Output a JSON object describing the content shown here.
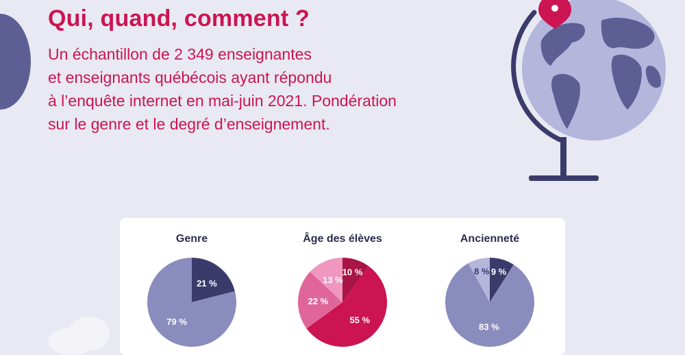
{
  "header": {
    "title": "Qui, quand, comment ?",
    "lines": [
      "Un échantillon de 2 349 enseignantes",
      "et enseignants québécois ayant répondu",
      "à l’enquête internet en mai-juin 2021. Pondération",
      "sur le genre et le degré d’enseignement."
    ]
  },
  "colors": {
    "accent": "#cc1452",
    "navy": "#3b3b6b",
    "lavender": "#8a8cbd",
    "lilac": "#b4b6dc",
    "pink_dark": "#a81545",
    "pink_mid": "#cc1452",
    "pink_light": "#e0669a",
    "pink_pale": "#ef97bf",
    "background": "#e8e9f2"
  },
  "chart_data": [
    {
      "type": "pie",
      "title": "Genre",
      "categories": [
        "",
        ""
      ],
      "values": [
        21,
        79
      ],
      "labels": [
        "21 %",
        "79 %"
      ],
      "colors": [
        "#3b3b6b",
        "#8a8cbd"
      ],
      "label_colors": [
        "#ffffff",
        "#ffffff"
      ]
    },
    {
      "type": "pie",
      "title": "Âge des élèves",
      "categories": [
        "",
        "",
        "",
        ""
      ],
      "values": [
        10,
        55,
        22,
        13
      ],
      "labels": [
        "10 %",
        "55 %",
        "22 %",
        "13 %"
      ],
      "colors": [
        "#a81545",
        "#cc1452",
        "#e0669a",
        "#ef97bf"
      ],
      "label_colors": [
        "#ffffff",
        "#ffffff",
        "#ffffff",
        "#ffffff"
      ]
    },
    {
      "type": "pie",
      "title": "Ancienneté",
      "categories": [
        "",
        "",
        ""
      ],
      "values": [
        9,
        83,
        8
      ],
      "labels": [
        "9 %",
        "83 %",
        "8 %"
      ],
      "colors": [
        "#3b3b6b",
        "#8a8cbd",
        "#b4b6dc"
      ],
      "label_colors": [
        "#ffffff",
        "#ffffff",
        "#3b3b6b"
      ]
    }
  ],
  "decorations": {
    "globe_icon": "globe-with-pin-icon",
    "pin_icon": "location-pin-icon"
  }
}
